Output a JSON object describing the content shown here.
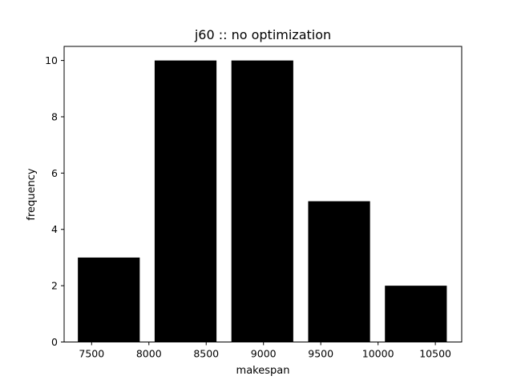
{
  "chart_data": {
    "type": "bar",
    "title": "j60 :: no optimization",
    "xlabel": "makespan",
    "ylabel": "frequency",
    "bars": [
      {
        "x_start": 7380,
        "x_end": 7920,
        "value": 3
      },
      {
        "x_start": 8050,
        "x_end": 8590,
        "value": 10
      },
      {
        "x_start": 8720,
        "x_end": 9260,
        "value": 10
      },
      {
        "x_start": 9390,
        "x_end": 9930,
        "value": 5
      },
      {
        "x_start": 10060,
        "x_end": 10600,
        "value": 2
      }
    ],
    "xlim": [
      7260,
      10730
    ],
    "ylim": [
      0,
      10.5
    ],
    "xticks": [
      7500,
      8000,
      8500,
      9000,
      9500,
      10000,
      10500
    ],
    "yticks": [
      0,
      2,
      4,
      6,
      8,
      10
    ],
    "bar_color": "#000000",
    "grid": false
  }
}
